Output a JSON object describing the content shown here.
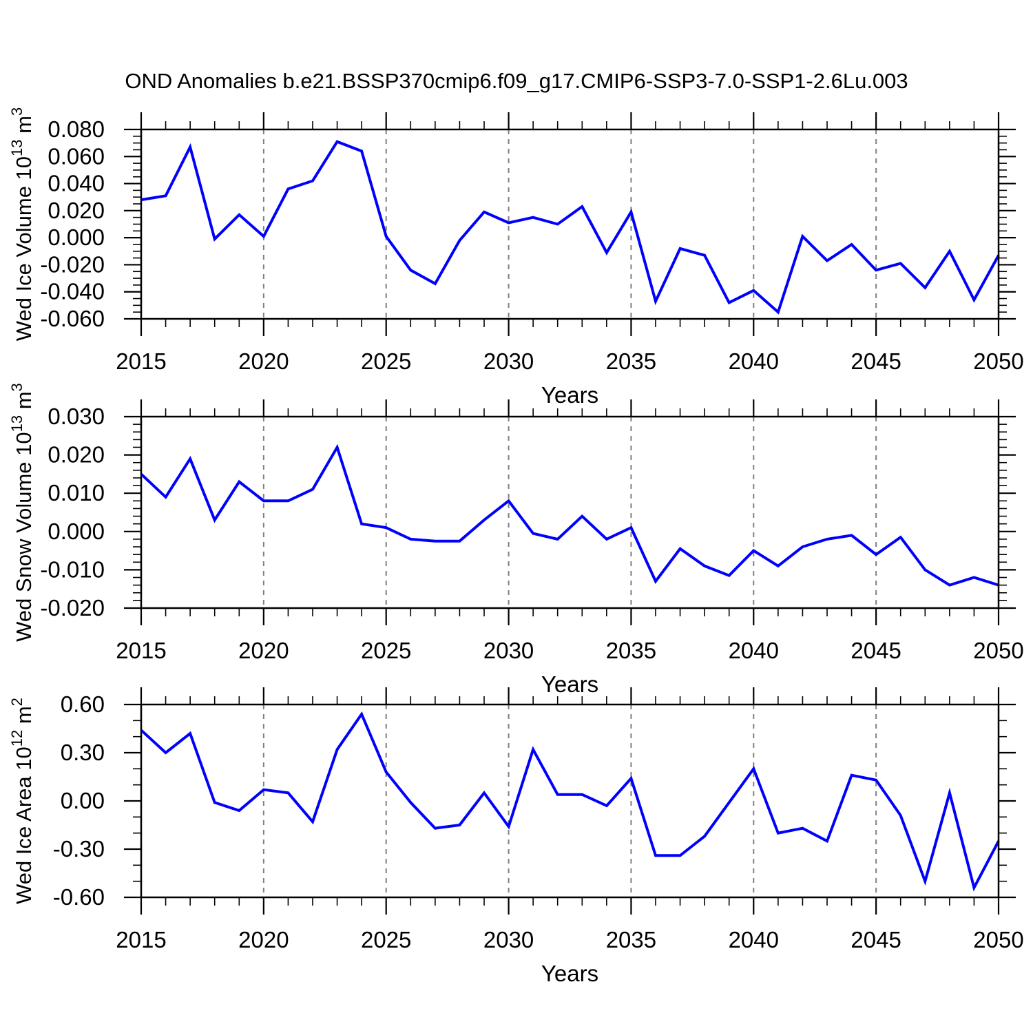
{
  "title": "OND Anomalies b.e21.BSSP370cmip6.f09_g17.CMIP6-SSP3-7.0-SSP1-2.6Lu.003",
  "colors": {
    "line": "#0000ff",
    "frame": "#000000",
    "grid": "#808080",
    "text": "#000000",
    "background": "#ffffff"
  },
  "chart_data": [
    {
      "type": "line",
      "name": "wed-ice-volume",
      "ylabel_parts": {
        "prefix": "Wed Ice Volume 10",
        "exponent": "13",
        "unit": " m",
        "unit_exponent": "3"
      },
      "xlabel": "Years",
      "x": [
        2015,
        2016,
        2017,
        2018,
        2019,
        2020,
        2021,
        2022,
        2023,
        2024,
        2025,
        2026,
        2027,
        2028,
        2029,
        2030,
        2031,
        2032,
        2033,
        2034,
        2035,
        2036,
        2037,
        2038,
        2039,
        2040,
        2041,
        2042,
        2043,
        2044,
        2045,
        2046,
        2047,
        2048,
        2049,
        2050
      ],
      "values": [
        0.028,
        0.031,
        0.067,
        -0.001,
        0.017,
        0.001,
        0.036,
        0.042,
        0.071,
        0.064,
        0.001,
        -0.024,
        -0.034,
        -0.002,
        0.019,
        0.011,
        0.015,
        0.01,
        0.023,
        -0.011,
        0.019,
        -0.047,
        -0.008,
        -0.013,
        -0.048,
        -0.039,
        -0.055,
        0.001,
        -0.017,
        -0.005,
        -0.024,
        -0.019,
        -0.037,
        -0.01,
        -0.046,
        -0.013
      ],
      "xlim": [
        2015,
        2050
      ],
      "ylim": [
        -0.06,
        0.08
      ],
      "xticks": [
        2015,
        2020,
        2025,
        2030,
        2035,
        2040,
        2045,
        2050
      ],
      "xtick_labels": [
        "2015",
        "2020",
        "2025",
        "2030",
        "2035",
        "2040",
        "2045",
        "2050"
      ],
      "x_minor_step": 1,
      "yticks": [
        0.08,
        0.06,
        0.04,
        0.02,
        0.0,
        -0.02,
        -0.04,
        -0.06
      ],
      "ytick_labels": [
        "0.080",
        "0.060",
        "0.040",
        "0.020",
        "0.000",
        "-0.020",
        "-0.040",
        "-0.060"
      ],
      "y_minor_step": 0.005,
      "grid_x": [
        2020,
        2025,
        2030,
        2035,
        2040,
        2045
      ],
      "grid": "vertical-dashed",
      "legend": "none"
    },
    {
      "type": "line",
      "name": "wed-snow-volume",
      "ylabel_parts": {
        "prefix": "Wed Snow Volume 10",
        "exponent": "13",
        "unit": " m",
        "unit_exponent": "3"
      },
      "xlabel": "Years",
      "x": [
        2015,
        2016,
        2017,
        2018,
        2019,
        2020,
        2021,
        2022,
        2023,
        2024,
        2025,
        2026,
        2027,
        2028,
        2029,
        2030,
        2031,
        2032,
        2033,
        2034,
        2035,
        2036,
        2037,
        2038,
        2039,
        2040,
        2041,
        2042,
        2043,
        2044,
        2045,
        2046,
        2047,
        2048,
        2049,
        2050
      ],
      "values": [
        0.015,
        0.009,
        0.019,
        0.003,
        0.013,
        0.008,
        0.008,
        0.011,
        0.022,
        0.002,
        0.001,
        -0.002,
        -0.0025,
        -0.0025,
        0.003,
        0.008,
        -0.0005,
        -0.002,
        0.004,
        -0.002,
        0.001,
        -0.013,
        -0.0045,
        -0.009,
        -0.0115,
        -0.005,
        -0.009,
        -0.004,
        -0.002,
        -0.001,
        -0.006,
        -0.0015,
        -0.01,
        -0.014,
        -0.012,
        -0.014
      ],
      "xlim": [
        2015,
        2050
      ],
      "ylim": [
        -0.02,
        0.03
      ],
      "xticks": [
        2015,
        2020,
        2025,
        2030,
        2035,
        2040,
        2045,
        2050
      ],
      "xtick_labels": [
        "2015",
        "2020",
        "2025",
        "2030",
        "2035",
        "2040",
        "2045",
        "2050"
      ],
      "x_minor_step": 1,
      "yticks": [
        0.03,
        0.02,
        0.01,
        0.0,
        -0.01,
        -0.02
      ],
      "ytick_labels": [
        "0.030",
        "0.020",
        "0.010",
        "0.000",
        "-0.010",
        "-0.020"
      ],
      "y_minor_step": 0.002,
      "grid_x": [
        2020,
        2025,
        2030,
        2035,
        2040,
        2045
      ],
      "grid": "vertical-dashed",
      "legend": "none"
    },
    {
      "type": "line",
      "name": "wed-ice-area",
      "ylabel_parts": {
        "prefix": "Wed Ice Area 10",
        "exponent": "12",
        "unit": " m",
        "unit_exponent": "2"
      },
      "xlabel": "Years",
      "x": [
        2015,
        2016,
        2017,
        2018,
        2019,
        2020,
        2021,
        2022,
        2023,
        2024,
        2025,
        2026,
        2027,
        2028,
        2029,
        2030,
        2031,
        2032,
        2033,
        2034,
        2035,
        2036,
        2037,
        2038,
        2039,
        2040,
        2041,
        2042,
        2043,
        2044,
        2045,
        2046,
        2047,
        2048,
        2049,
        2050
      ],
      "values": [
        0.44,
        0.3,
        0.42,
        -0.01,
        -0.06,
        0.07,
        0.05,
        -0.13,
        0.32,
        0.54,
        0.18,
        -0.01,
        -0.17,
        -0.15,
        0.05,
        -0.16,
        0.32,
        0.04,
        0.04,
        -0.03,
        0.14,
        -0.34,
        -0.34,
        -0.22,
        -0.01,
        0.2,
        -0.2,
        -0.17,
        -0.25,
        0.16,
        0.13,
        -0.09,
        -0.5,
        0.05,
        -0.54,
        -0.25
      ],
      "xlim": [
        2015,
        2050
      ],
      "ylim": [
        -0.6,
        0.6
      ],
      "xticks": [
        2015,
        2020,
        2025,
        2030,
        2035,
        2040,
        2045,
        2050
      ],
      "xtick_labels": [
        "2015",
        "2020",
        "2025",
        "2030",
        "2035",
        "2040",
        "2045",
        "2050"
      ],
      "x_minor_step": 1,
      "yticks": [
        0.6,
        0.3,
        0.0,
        -0.3,
        -0.6
      ],
      "ytick_labels": [
        "0.60",
        "0.30",
        "0.00",
        "-0.30",
        "-0.60"
      ],
      "y_minor_step": 0.1,
      "grid_x": [
        2020,
        2025,
        2030,
        2035,
        2040,
        2045
      ],
      "grid": "vertical-dashed",
      "legend": "none"
    }
  ]
}
